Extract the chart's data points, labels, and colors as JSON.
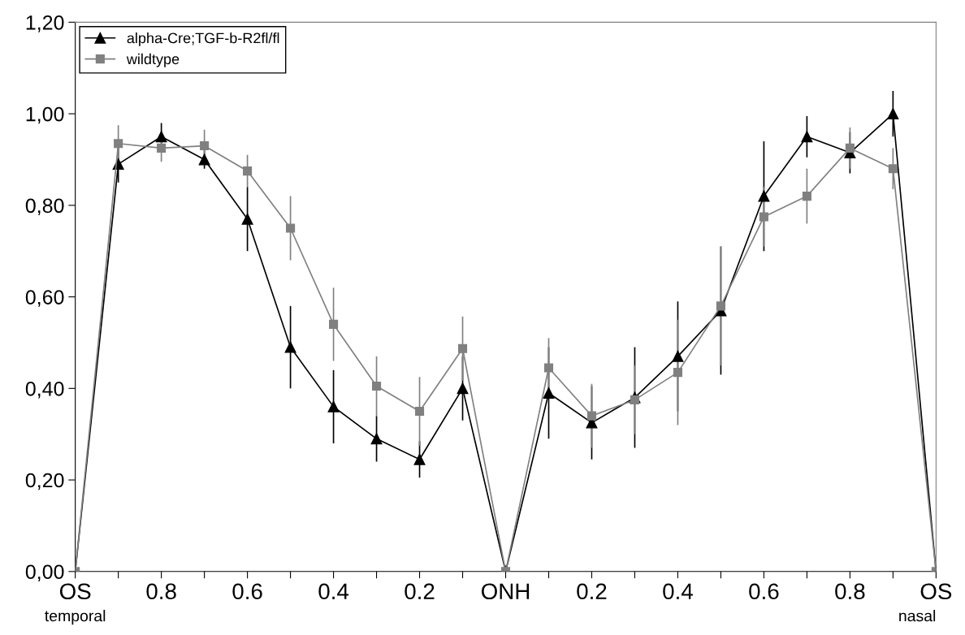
{
  "chart_data": {
    "type": "line",
    "categories": [
      "OS",
      null,
      "0.8",
      null,
      "0.6",
      null,
      "0.4",
      null,
      "0.2",
      null,
      "ONH",
      null,
      "0.2",
      null,
      "0.4",
      null,
      "0.6",
      null,
      "0.8",
      null,
      "OS"
    ],
    "series": [
      {
        "name": "alpha-Cre;TGF-b-R2fl/fl",
        "color": "#000000",
        "marker": "triangle",
        "values": [
          0,
          0.89,
          0.95,
          0.9,
          0.77,
          0.49,
          0.36,
          0.29,
          0.245,
          0.4,
          0,
          0.39,
          0.325,
          0.38,
          0.47,
          0.57,
          0.82,
          0.95,
          0.915,
          1.0,
          0
        ],
        "errors": [
          null,
          0.04,
          0.03,
          0.02,
          0.07,
          0.09,
          0.08,
          0.05,
          0.04,
          0.07,
          null,
          0.1,
          0.08,
          0.11,
          0.12,
          0.14,
          0.12,
          0.045,
          0.045,
          0.05,
          null
        ]
      },
      {
        "name": "wildtype",
        "color": "#808080",
        "marker": "square",
        "values": [
          0,
          0.935,
          0.925,
          0.93,
          0.875,
          0.75,
          0.54,
          0.405,
          0.35,
          0.487,
          0,
          0.445,
          0.34,
          0.375,
          0.435,
          0.58,
          0.775,
          0.82,
          0.925,
          0.88,
          0
        ],
        "errors": [
          null,
          0.04,
          0.03,
          0.035,
          0.035,
          0.07,
          0.08,
          0.065,
          0.075,
          0.07,
          null,
          0.065,
          0.07,
          0.075,
          0.115,
          0.13,
          0.065,
          0.06,
          0.045,
          0.045,
          null
        ]
      }
    ],
    "ylim": [
      0,
      1.2
    ],
    "yticks": [
      {
        "value": 0,
        "label": "0,00"
      },
      {
        "value": 0.2,
        "label": "0,20"
      },
      {
        "value": 0.4,
        "label": "0,40"
      },
      {
        "value": 0.6,
        "label": "0,60"
      },
      {
        "value": 0.8,
        "label": "0,80"
      },
      {
        "value": 1.0,
        "label": "1,00"
      },
      {
        "value": 1.2,
        "label": "1,20"
      }
    ],
    "annotations": [
      "temporal",
      "nasal"
    ],
    "legend": "top left",
    "grid": false
  }
}
